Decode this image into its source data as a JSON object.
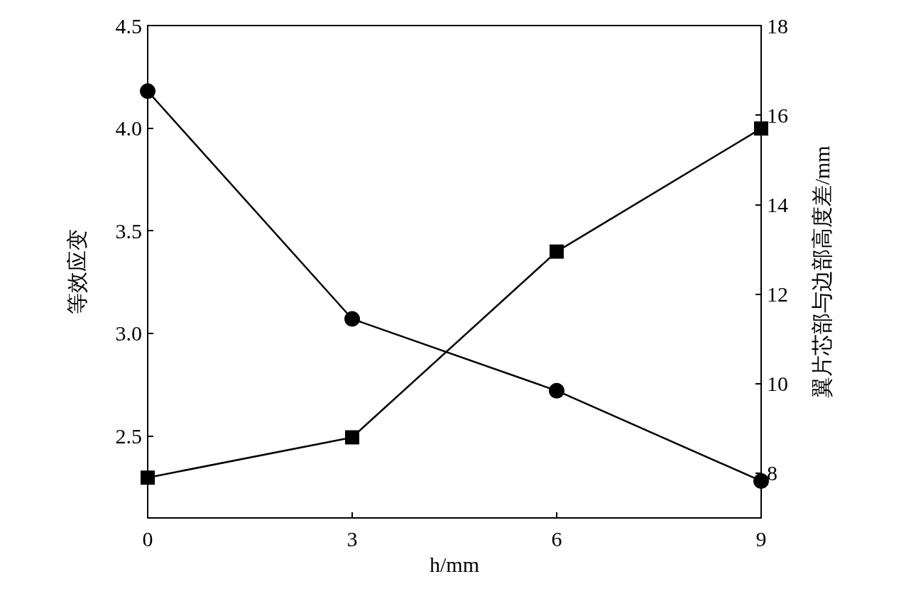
{
  "chart_data": {
    "type": "line",
    "xlabel": "h/mm",
    "ylabel": "等效应变",
    "y2label": "翼片芯部与边部高度差/mm",
    "x": [
      0,
      3,
      6,
      9
    ],
    "xlim": [
      0,
      9
    ],
    "xticks": [
      0,
      3,
      6,
      9
    ],
    "ylim": [
      2.1,
      4.5
    ],
    "yticks": [
      {
        "value": 2.5,
        "label": "2.5"
      },
      {
        "value": 3,
        "label": "3.0"
      },
      {
        "value": 3.5,
        "label": "3.5"
      },
      {
        "value": 4,
        "label": "4.0"
      },
      {
        "value": 4.5,
        "label": "4.5"
      }
    ],
    "y2lim": [
      7,
      18
    ],
    "y2ticks": [
      8,
      10,
      12,
      14,
      16,
      18
    ],
    "series": [
      {
        "color": "#000000",
        "marker": "circle",
        "values": [
          4.18,
          3.07,
          2.72,
          2.28
        ]
      },
      {
        "color": "#000000",
        "marker": "square",
        "axis": "y2",
        "values": [
          7.9,
          8.8,
          12.95,
          15.7
        ]
      }
    ],
    "grid": false,
    "line_style": "solid"
  }
}
